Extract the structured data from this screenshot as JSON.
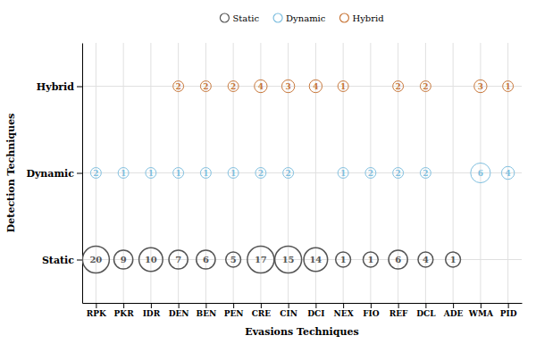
{
  "chart_data": {
    "type": "bubble",
    "xlabel": "Evasions Techniques",
    "ylabel": "Detection Techniques",
    "categories": [
      "RPK",
      "PKR",
      "IDR",
      "DEN",
      "BEN",
      "PEN",
      "CRE",
      "CIN",
      "DCI",
      "NEX",
      "FIO",
      "REF",
      "DCL",
      "ADE",
      "WMA",
      "PID"
    ],
    "y_categories": [
      "Static",
      "Dynamic",
      "Hybrid"
    ],
    "series": [
      {
        "name": "Static",
        "color": "#555555",
        "values": [
          20,
          9,
          10,
          7,
          6,
          5,
          17,
          15,
          14,
          1,
          1,
          6,
          4,
          1,
          null,
          null
        ],
        "sizes": [
          700,
          350,
          550,
          350,
          350,
          220,
          700,
          700,
          550,
          220,
          220,
          350,
          220,
          220,
          null,
          null
        ]
      },
      {
        "name": "Dynamic",
        "color": "#7fbfdf",
        "values": [
          2,
          1,
          1,
          1,
          1,
          1,
          2,
          2,
          null,
          1,
          2,
          2,
          2,
          null,
          6,
          4
        ],
        "sizes": [
          110,
          110,
          110,
          110,
          110,
          110,
          110,
          110,
          null,
          110,
          110,
          110,
          110,
          null,
          380,
          160
        ]
      },
      {
        "name": "Hybrid",
        "color": "#c8773a",
        "values": [
          null,
          null,
          null,
          2,
          2,
          2,
          4,
          3,
          4,
          1,
          null,
          2,
          2,
          null,
          3,
          1
        ],
        "sizes": [
          null,
          null,
          null,
          110,
          110,
          110,
          160,
          160,
          160,
          110,
          null,
          110,
          110,
          null,
          160,
          110
        ]
      }
    ],
    "grid": true,
    "legend": "top",
    "data_labels": true
  }
}
